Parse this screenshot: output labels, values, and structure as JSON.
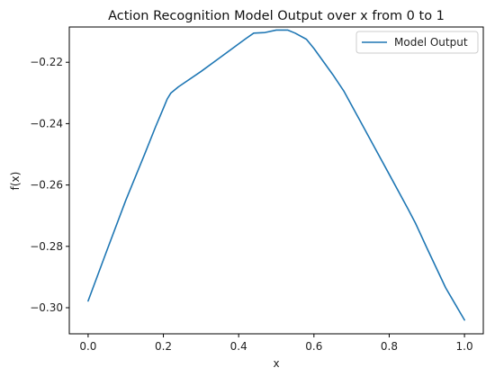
{
  "chart_data": {
    "type": "line",
    "title": "Action Recognition Model Output over x from 0 to 1",
    "xlabel": "x",
    "ylabel": "f(x)",
    "xlim": [
      -0.05,
      1.05
    ],
    "ylim": [
      -0.3085,
      -0.2085
    ],
    "xticks": [
      0.0,
      0.2,
      0.4,
      0.6,
      0.8,
      1.0
    ],
    "xtick_labels": [
      "0.0",
      "0.2",
      "0.4",
      "0.6",
      "0.8",
      "1.0"
    ],
    "yticks": [
      -0.3,
      -0.28,
      -0.26,
      -0.24,
      -0.22
    ],
    "ytick_labels": [
      "−0.30",
      "−0.28",
      "−0.26",
      "−0.24",
      "−0.22"
    ],
    "grid": false,
    "legend_position": "top-right",
    "series": [
      {
        "name": "Model Output",
        "color": "#1f77b4",
        "x": [
          0.0,
          0.05,
          0.1,
          0.15,
          0.18,
          0.2,
          0.21,
          0.22,
          0.24,
          0.3,
          0.35,
          0.4,
          0.42,
          0.44,
          0.47,
          0.5,
          0.53,
          0.55,
          0.58,
          0.6,
          0.65,
          0.68,
          0.72,
          0.76,
          0.8,
          0.85,
          0.87,
          0.9,
          0.95,
          1.0
        ],
        "y": [
          -0.2978,
          -0.2813,
          -0.265,
          -0.25,
          -0.2408,
          -0.235,
          -0.232,
          -0.23,
          -0.228,
          -0.223,
          -0.2185,
          -0.214,
          -0.2122,
          -0.2105,
          -0.2103,
          -0.2095,
          -0.2095,
          -0.2105,
          -0.2125,
          -0.2155,
          -0.224,
          -0.2295,
          -0.2385,
          -0.2475,
          -0.2565,
          -0.2678,
          -0.2725,
          -0.2805,
          -0.2935,
          -0.304
        ]
      }
    ]
  }
}
